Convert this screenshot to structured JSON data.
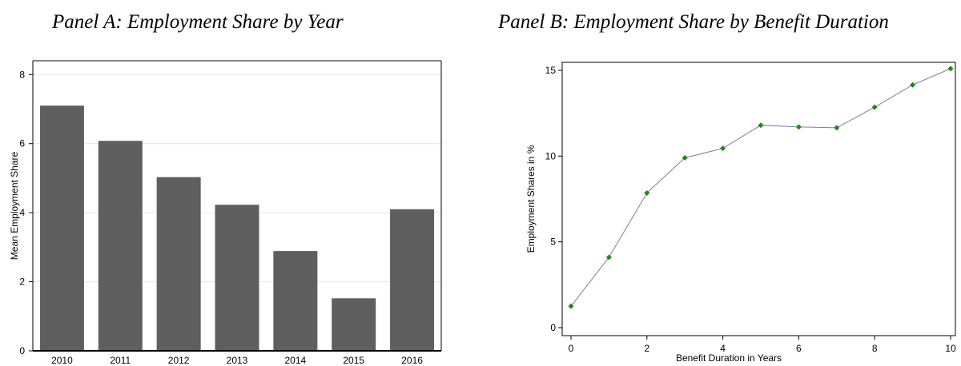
{
  "chart_data": [
    {
      "type": "bar",
      "title": "Panel A: Employment Share by Year",
      "xlabel": "",
      "ylabel": "Mean Employment Share",
      "categories": [
        "2010",
        "2011",
        "2012",
        "2013",
        "2014",
        "2015",
        "2016"
      ],
      "values": [
        7.1,
        6.08,
        5.03,
        4.23,
        2.89,
        1.52,
        4.1
      ],
      "ylim": [
        0,
        8.4
      ],
      "yticks": [
        0,
        2,
        4,
        6,
        8
      ],
      "grid": true,
      "colors": {
        "bar": "#5f5f5f",
        "grid": "#e4e4e4"
      }
    },
    {
      "type": "line",
      "title": "Panel B: Employment Share by Benefit Duration",
      "xlabel": "Benefit Duration in Years",
      "ylabel": "Employment Shares in %",
      "x": [
        0,
        1,
        2,
        3,
        4,
        5,
        6,
        7,
        8,
        9,
        10
      ],
      "y": [
        1.25,
        4.1,
        7.85,
        9.9,
        10.45,
        11.8,
        11.7,
        11.65,
        12.85,
        14.15,
        15.1
      ],
      "xlim": [
        0,
        10
      ],
      "ylim": [
        0,
        15.5
      ],
      "xticks": [
        0,
        2,
        4,
        6,
        8,
        10
      ],
      "yticks": [
        0,
        5,
        10,
        15
      ],
      "grid": false,
      "colors": {
        "line": "#7b80a6",
        "marker": "#1a8a1a"
      }
    }
  ]
}
